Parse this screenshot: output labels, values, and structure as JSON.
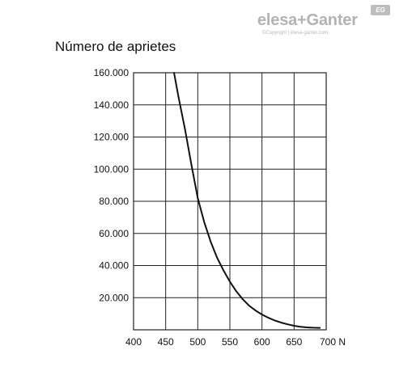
{
  "logo": {
    "brand": "elesa+Ganter",
    "copyright": "©Copyright | elesa-ganter.com",
    "badge": "EG"
  },
  "chart_data": {
    "type": "line",
    "title": "Número de aprietes",
    "xlabel": "",
    "ylabel": "",
    "xlim": [
      400,
      700
    ],
    "ylim": [
      0,
      160000
    ],
    "x_ticks": [
      400,
      450,
      500,
      550,
      600,
      650,
      700
    ],
    "x_tick_labels": [
      "400",
      "450",
      "500",
      "550",
      "600",
      "650",
      "700 N"
    ],
    "y_ticks": [
      20000,
      40000,
      60000,
      80000,
      100000,
      120000,
      140000,
      160000
    ],
    "y_tick_labels": [
      "20.000",
      "40.000",
      "60.000",
      "80.000",
      "100.000",
      "120.000",
      "140.000",
      "160.000"
    ],
    "grid": true,
    "series": [
      {
        "x": [
          463,
          470,
          480,
          490,
          500,
          510,
          520,
          530,
          540,
          550,
          560,
          570,
          580,
          590,
          600,
          610,
          620,
          630,
          640,
          650,
          660,
          670,
          680,
          690
        ],
        "y": [
          160000,
          145000,
          125000,
          103000,
          82000,
          67000,
          55000,
          45000,
          37000,
          30000,
          24000,
          19000,
          15000,
          12000,
          9500,
          7500,
          5800,
          4500,
          3400,
          2500,
          1900,
          1500,
          1300,
          1200
        ]
      }
    ],
    "colors": {
      "line": "#111111",
      "grid": "#222222"
    }
  }
}
